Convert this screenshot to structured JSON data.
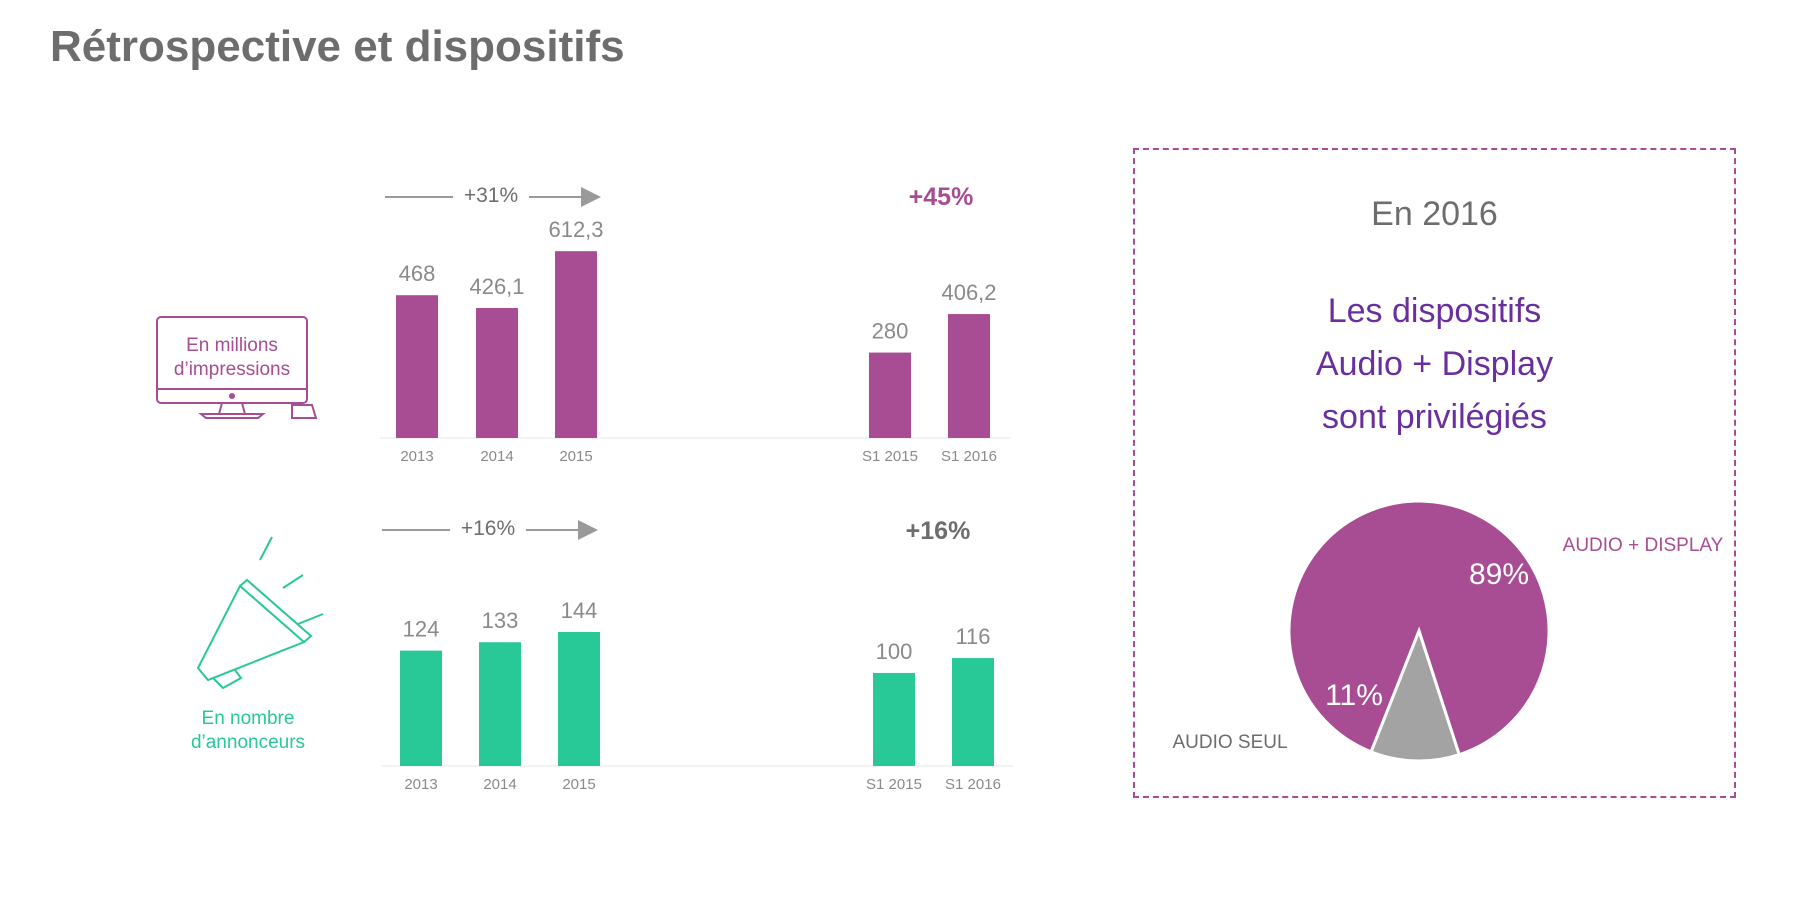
{
  "page": {
    "title": "Rétrospective et dispositifs"
  },
  "colors": {
    "purple": "#a84d94",
    "green": "#29c897",
    "grey": "#a3a3a3",
    "label_grey": "#8a8a8a",
    "dark_purple": "#6a2f9f"
  },
  "icons": {
    "impressions": "monitor-icon",
    "annonceurs": "megaphone-icon"
  },
  "chart_data": [
    {
      "type": "bar",
      "title": "En millions d’impressions",
      "categories": [
        "2013",
        "2014",
        "2015",
        "S1 2015",
        "S1 2016"
      ],
      "values": [
        468,
        426.1,
        612.3,
        280,
        406.2
      ],
      "value_labels": [
        "468",
        "426,1",
        "612,3",
        "280",
        "406,2"
      ],
      "growth_annual": "+31%",
      "growth_semester": "+45%",
      "ylim": [
        0,
        700
      ]
    },
    {
      "type": "bar",
      "title": "En nombre d’annonceurs",
      "categories": [
        "2013",
        "2014",
        "2015",
        "S1 2015",
        "S1 2016"
      ],
      "values": [
        124,
        133,
        144,
        100,
        116
      ],
      "value_labels": [
        "124",
        "133",
        "144",
        "100",
        "116"
      ],
      "growth_annual": "+16%",
      "growth_semester": "+16%",
      "ylim": [
        0,
        160
      ]
    },
    {
      "type": "pie",
      "title": "En 2016",
      "headline": [
        "Les dispositifs",
        "Audio + Display",
        "sont privilégiés"
      ],
      "slices": [
        {
          "label": "AUDIO + DISPLAY",
          "value": 89,
          "display": "89%"
        },
        {
          "label": "AUDIO SEUL",
          "value": 11,
          "display": "11%"
        }
      ]
    }
  ]
}
